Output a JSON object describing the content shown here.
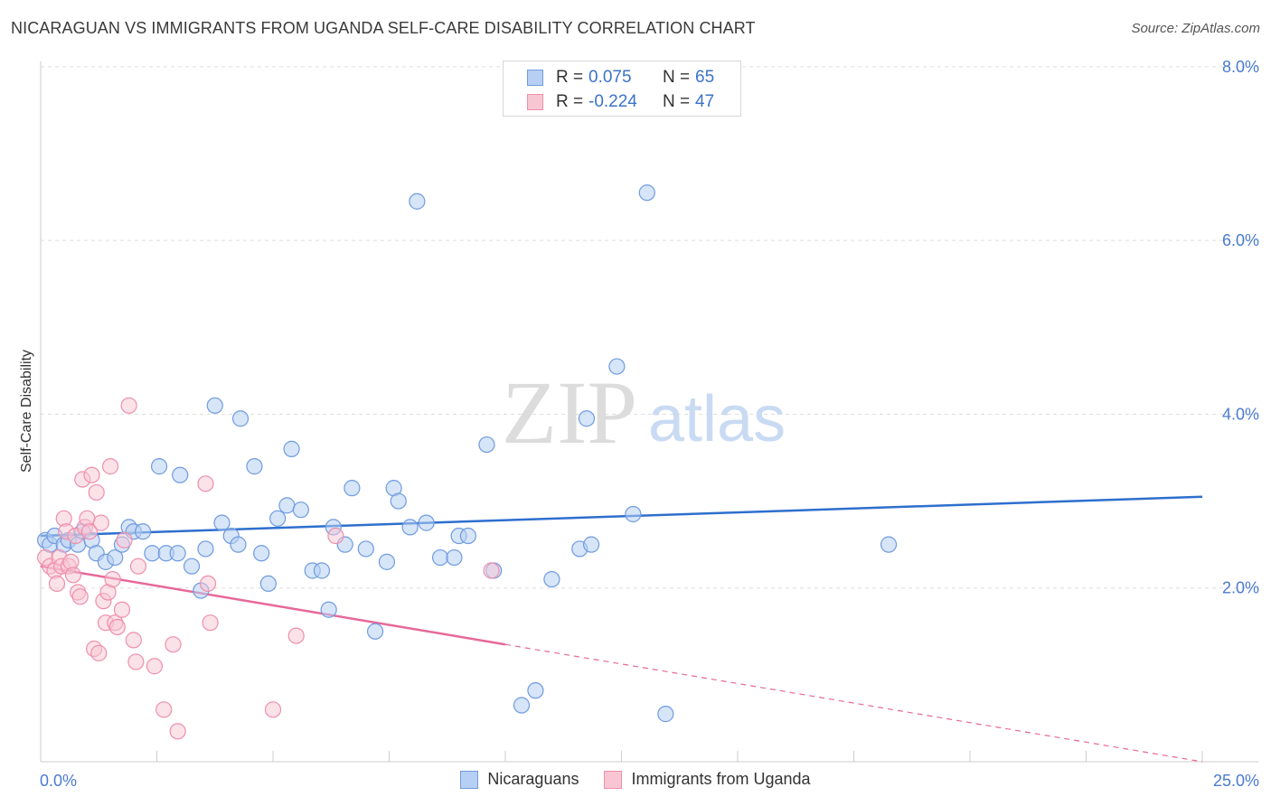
{
  "header": {
    "title": "NICARAGUAN VS IMMIGRANTS FROM UGANDA SELF-CARE DISABILITY CORRELATION CHART",
    "source": "Source: ZipAtlas.com"
  },
  "legend": {
    "rows": [
      {
        "r_label": "R =",
        "r_value": "0.075",
        "n_label": "N =",
        "n_value": "65"
      },
      {
        "r_label": "R =",
        "r_value": "-0.224",
        "n_label": "N =",
        "n_value": "47"
      }
    ]
  },
  "bottom_legend": {
    "items": [
      {
        "label": "Nicaraguans"
      },
      {
        "label": "Immigrants from Uganda"
      }
    ]
  },
  "watermark": {
    "zip": "ZIP",
    "atlas": "atlas"
  },
  "colors": {
    "blue_fill": "#b7cff2",
    "blue_stroke": "#6f9be0",
    "blue_line": "#2e6fce",
    "pink_fill": "#f8c5d3",
    "pink_stroke": "#ee8fab",
    "pink_line": "#e8679a",
    "tick_text": "#4a7bd0",
    "grid": "#dddddd"
  },
  "chart_data": {
    "type": "scatter",
    "title": "NICARAGUAN VS IMMIGRANTS FROM UGANDA SELF-CARE DISABILITY CORRELATION CHART",
    "xlabel": "",
    "ylabel": "Self-Care Disability",
    "xlim": [
      0,
      25
    ],
    "ylim": [
      0,
      8.3
    ],
    "x_tick_labels": [
      "0.0%",
      "25.0%"
    ],
    "y_ticks": [
      2,
      4,
      6,
      8
    ],
    "y_tick_labels": [
      "2.0%",
      "4.0%",
      "6.0%",
      "8.0%"
    ],
    "grid": true,
    "series": [
      {
        "name": "Nicaraguans",
        "color": "blue",
        "trend": {
          "x": [
            0,
            25
          ],
          "y": [
            2.6,
            3.05
          ],
          "dashed_from": null
        },
        "points": [
          [
            0.1,
            2.55
          ],
          [
            0.2,
            2.5
          ],
          [
            0.3,
            2.6
          ],
          [
            0.5,
            2.5
          ],
          [
            0.6,
            2.55
          ],
          [
            0.8,
            2.5
          ],
          [
            0.9,
            2.65
          ],
          [
            1.1,
            2.55
          ],
          [
            1.2,
            2.4
          ],
          [
            1.4,
            2.3
          ],
          [
            1.6,
            2.35
          ],
          [
            1.75,
            2.5
          ],
          [
            1.9,
            2.7
          ],
          [
            2.0,
            2.65
          ],
          [
            2.2,
            2.65
          ],
          [
            2.4,
            2.4
          ],
          [
            2.55,
            3.4
          ],
          [
            2.7,
            2.4
          ],
          [
            2.95,
            2.4
          ],
          [
            3.0,
            3.3
          ],
          [
            3.25,
            2.25
          ],
          [
            3.45,
            1.97
          ],
          [
            3.55,
            2.45
          ],
          [
            3.75,
            4.1
          ],
          [
            3.9,
            2.75
          ],
          [
            4.1,
            2.6
          ],
          [
            4.25,
            2.5
          ],
          [
            4.3,
            3.95
          ],
          [
            4.6,
            3.4
          ],
          [
            4.75,
            2.4
          ],
          [
            4.9,
            2.05
          ],
          [
            5.1,
            2.8
          ],
          [
            5.3,
            2.95
          ],
          [
            5.4,
            3.6
          ],
          [
            5.6,
            2.9
          ],
          [
            5.85,
            2.2
          ],
          [
            6.05,
            2.2
          ],
          [
            6.2,
            1.75
          ],
          [
            6.3,
            2.7
          ],
          [
            6.55,
            2.5
          ],
          [
            6.7,
            3.15
          ],
          [
            7.0,
            2.45
          ],
          [
            7.2,
            1.5
          ],
          [
            7.45,
            2.3
          ],
          [
            7.6,
            3.15
          ],
          [
            7.7,
            3.0
          ],
          [
            7.95,
            2.7
          ],
          [
            8.3,
            2.75
          ],
          [
            8.1,
            6.45
          ],
          [
            8.6,
            2.35
          ],
          [
            8.9,
            2.35
          ],
          [
            9.0,
            2.6
          ],
          [
            9.2,
            2.6
          ],
          [
            9.6,
            3.65
          ],
          [
            9.75,
            2.2
          ],
          [
            10.35,
            0.65
          ],
          [
            10.65,
            0.82
          ],
          [
            11.0,
            2.1
          ],
          [
            11.6,
            2.45
          ],
          [
            11.75,
            3.95
          ],
          [
            11.85,
            2.5
          ],
          [
            12.4,
            4.55
          ],
          [
            12.75,
            2.85
          ],
          [
            13.05,
            6.55
          ],
          [
            13.45,
            0.55
          ],
          [
            18.25,
            2.5
          ]
        ]
      },
      {
        "name": "Immigrants from Uganda",
        "color": "pink",
        "trend": {
          "x": [
            0,
            10
          ],
          "y": [
            2.25,
            1.35
          ],
          "dashed_to": [
            25,
            0.0
          ]
        },
        "points": [
          [
            0.1,
            2.35
          ],
          [
            0.2,
            2.25
          ],
          [
            0.3,
            2.2
          ],
          [
            0.35,
            2.05
          ],
          [
            0.4,
            2.35
          ],
          [
            0.45,
            2.25
          ],
          [
            0.5,
            2.8
          ],
          [
            0.55,
            2.65
          ],
          [
            0.6,
            2.25
          ],
          [
            0.65,
            2.3
          ],
          [
            0.7,
            2.15
          ],
          [
            0.75,
            2.6
          ],
          [
            0.8,
            1.95
          ],
          [
            0.85,
            1.9
          ],
          [
            0.9,
            3.25
          ],
          [
            0.95,
            2.7
          ],
          [
            1.0,
            2.8
          ],
          [
            1.05,
            2.65
          ],
          [
            1.1,
            3.3
          ],
          [
            1.15,
            1.3
          ],
          [
            1.2,
            3.1
          ],
          [
            1.25,
            1.25
          ],
          [
            1.3,
            2.75
          ],
          [
            1.35,
            1.85
          ],
          [
            1.4,
            1.6
          ],
          [
            1.45,
            1.95
          ],
          [
            1.5,
            3.4
          ],
          [
            1.55,
            2.1
          ],
          [
            1.6,
            1.6
          ],
          [
            1.65,
            1.55
          ],
          [
            1.75,
            1.75
          ],
          [
            1.8,
            2.55
          ],
          [
            1.9,
            4.1
          ],
          [
            2.0,
            1.4
          ],
          [
            2.1,
            2.25
          ],
          [
            2.05,
            1.15
          ],
          [
            2.45,
            1.1
          ],
          [
            2.65,
            0.6
          ],
          [
            2.85,
            1.35
          ],
          [
            2.95,
            0.35
          ],
          [
            3.55,
            3.2
          ],
          [
            3.6,
            2.05
          ],
          [
            3.65,
            1.6
          ],
          [
            5.0,
            0.6
          ],
          [
            5.5,
            1.45
          ],
          [
            6.35,
            2.6
          ],
          [
            9.7,
            2.2
          ]
        ]
      }
    ]
  }
}
